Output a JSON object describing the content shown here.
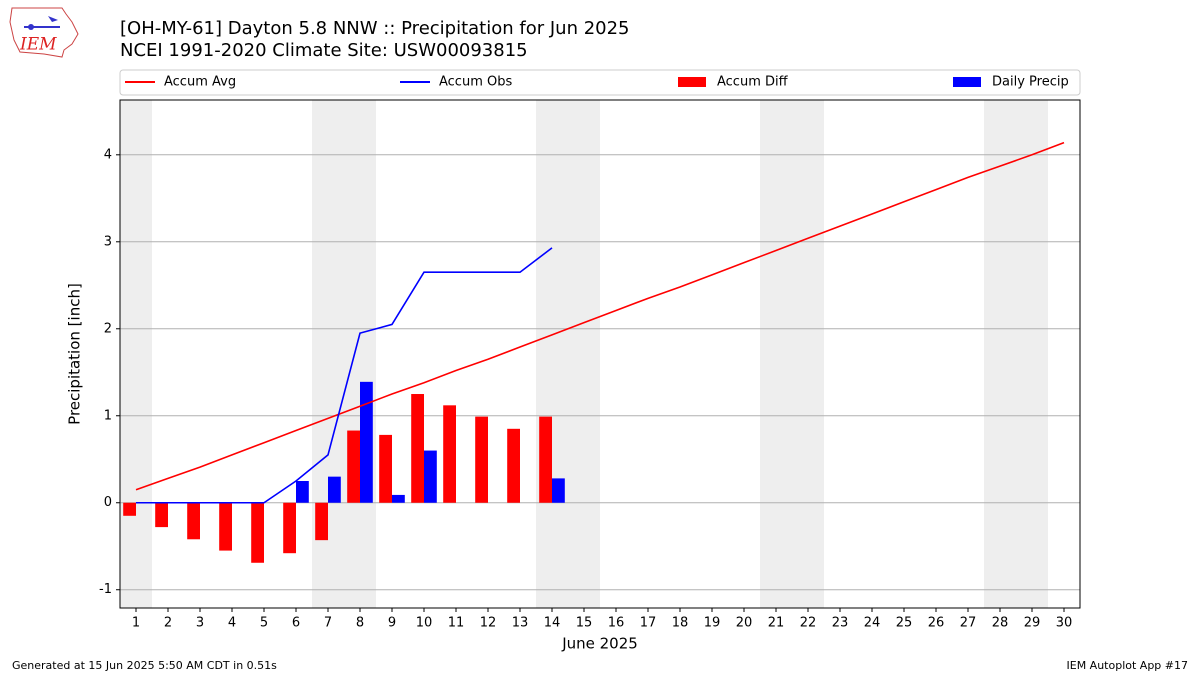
{
  "chart_data": {
    "type": "combo",
    "title": "[OH-MY-61] Dayton 5.8 NNW :: Precipitation for Jun 2025",
    "subtitle": "NCEI 1991-2020 Climate Site: USW00093815",
    "x_label": "June 2025",
    "y_label": "Precipitation [inch]",
    "logo_text": "IEM",
    "footer_left": "Generated at 15 Jun 2025 5:50 AM CDT in 0.51s",
    "footer_right": "IEM Autoplot App #17",
    "x": [
      1,
      2,
      3,
      4,
      5,
      6,
      7,
      8,
      9,
      10,
      11,
      12,
      13,
      14,
      15,
      16,
      17,
      18,
      19,
      20,
      21,
      22,
      23,
      24,
      25,
      26,
      27,
      28,
      29,
      30
    ],
    "xlim": [
      0.5,
      30.5
    ],
    "xticks": [
      1,
      2,
      3,
      4,
      5,
      6,
      7,
      8,
      9,
      10,
      11,
      12,
      13,
      14,
      15,
      16,
      17,
      18,
      19,
      20,
      21,
      22,
      23,
      24,
      25,
      26,
      27,
      28,
      29,
      30
    ],
    "ylim": [
      -1.21,
      4.63
    ],
    "yticks": [
      -1,
      0,
      1,
      2,
      3,
      4
    ],
    "grid": true,
    "legend_position": "top",
    "shaded_spans": [
      [
        0.5,
        1.5
      ],
      [
        6.5,
        8.5
      ],
      [
        13.5,
        15.5
      ],
      [
        20.5,
        22.5
      ],
      [
        27.5,
        29.5
      ]
    ],
    "shade_color": "#eeeeee",
    "series": [
      {
        "name": "Accum Avg",
        "type": "line",
        "color": "#ff0000",
        "values": [
          0.15,
          0.28,
          0.41,
          0.55,
          0.69,
          0.83,
          0.97,
          1.11,
          1.25,
          1.38,
          1.52,
          1.65,
          1.79,
          1.93,
          2.07,
          2.21,
          2.35,
          2.48,
          2.62,
          2.76,
          2.9,
          3.04,
          3.18,
          3.32,
          3.46,
          3.6,
          3.74,
          3.87,
          4.0,
          4.14
        ]
      },
      {
        "name": "Accum Obs",
        "type": "line",
        "color": "#0000ff",
        "values": [
          0,
          0,
          0,
          0,
          0,
          0.25,
          0.55,
          1.95,
          2.05,
          2.65,
          2.65,
          2.65,
          2.65,
          2.93,
          null,
          null,
          null,
          null,
          null,
          null,
          null,
          null,
          null,
          null,
          null,
          null,
          null,
          null,
          null,
          null
        ]
      },
      {
        "name": "Accum Diff",
        "type": "bar",
        "color": "#ff0000",
        "values": [
          -0.15,
          -0.28,
          -0.42,
          -0.55,
          -0.69,
          -0.58,
          -0.43,
          0.83,
          0.78,
          1.25,
          1.12,
          0.99,
          0.85,
          0.99,
          null,
          null,
          null,
          null,
          null,
          null,
          null,
          null,
          null,
          null,
          null,
          null,
          null,
          null,
          null,
          null
        ]
      },
      {
        "name": "Daily Precip",
        "type": "bar",
        "color": "#0000ff",
        "values": [
          0,
          0,
          0,
          0,
          0,
          0.25,
          0.3,
          1.39,
          0.09,
          0.6,
          0,
          0,
          0,
          0.28,
          null,
          null,
          null,
          null,
          null,
          null,
          null,
          null,
          null,
          null,
          null,
          null,
          null,
          null,
          null,
          null
        ]
      }
    ]
  }
}
